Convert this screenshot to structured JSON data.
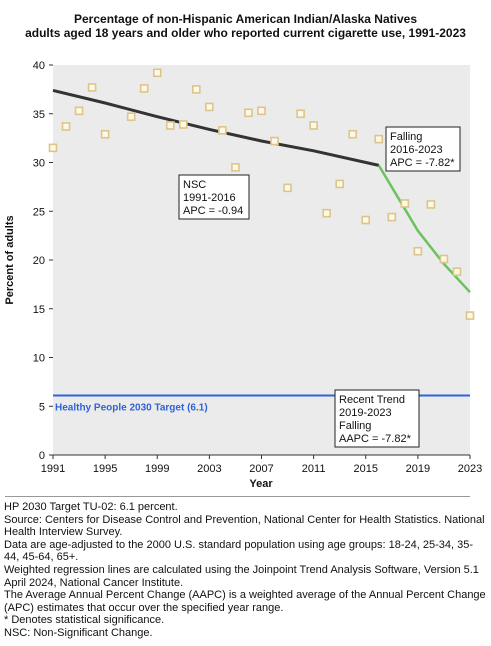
{
  "title": {
    "line1": "Percentage of non-Hispanic American Indian/Alaska Natives",
    "line2": "adults aged 18 years and older who reported current cigarette use, 1991-2023"
  },
  "chart_data": {
    "type": "scatter",
    "xlabel": "Year",
    "ylabel": "Percent of adults",
    "xlim": [
      1991,
      2023
    ],
    "ylim": [
      0,
      40
    ],
    "x_ticks": [
      "1991",
      "1995",
      "1999",
      "2003",
      "2007",
      "2011",
      "2015",
      "2019",
      "2023"
    ],
    "y_ticks": [
      "0",
      "5",
      "10",
      "15",
      "20",
      "25",
      "30",
      "35",
      "40"
    ],
    "grid": false,
    "series": [
      {
        "type": "scatter",
        "marker": "open-square",
        "color": "#dcc58a",
        "x": [
          1991,
          1992,
          1993,
          1994,
          1995,
          1997,
          1998,
          1999,
          2000,
          2001,
          2002,
          2003,
          2004,
          2005,
          2006,
          2007,
          2008,
          2009,
          2010,
          2011,
          2012,
          2013,
          2014,
          2015,
          2016,
          2017,
          2018,
          2019,
          2020,
          2021,
          2022,
          2023
        ],
        "y": [
          31.5,
          33.7,
          35.3,
          37.7,
          32.9,
          34.7,
          37.6,
          39.2,
          33.8,
          33.9,
          37.5,
          35.7,
          33.3,
          29.5,
          35.1,
          35.3,
          32.2,
          27.4,
          35.0,
          33.8,
          24.8,
          27.8,
          32.9,
          24.1,
          32.4,
          24.4,
          25.8,
          20.9,
          25.7,
          20.1,
          18.8,
          14.3
        ]
      },
      {
        "type": "line",
        "color": "#333333",
        "x": [
          1991,
          1995,
          1999,
          2003,
          2007,
          2011,
          2016
        ],
        "y": [
          37.4,
          36.1,
          34.7,
          33.4,
          32.2,
          31.2,
          29.7
        ]
      },
      {
        "type": "line",
        "color": "#6cc25e",
        "x": [
          2016,
          2019,
          2021,
          2023
        ],
        "y": [
          29.7,
          23.0,
          19.6,
          16.7
        ]
      },
      {
        "type": "line",
        "color": "#2f63d8",
        "x": [
          1991,
          2023
        ],
        "y": [
          6.1,
          6.1
        ]
      }
    ],
    "annotations": {
      "target_label": "Healthy People 2030 Target (6.1)",
      "nsc_box": [
        "NSC",
        "1991-2016",
        "APC = -0.94"
      ],
      "falling_box": [
        "Falling",
        "2016-2023",
        "APC = -7.82*"
      ],
      "recent_box": [
        "Recent Trend",
        "2019-2023",
        "Falling",
        "AAPC = -7.82*"
      ]
    }
  },
  "notes": [
    "HP 2030 Target TU-02: 6.1 percent.",
    "Source: Centers for Disease Control and Prevention, National Center for Health Statistics. National Health Interview Survey.",
    "Data are age-adjusted to the 2000 U.S. standard population using age groups: 18-24, 25-34, 35-44, 45-64, 65+.",
    "Weighted regression lines are calculated using the Joinpoint Trend Analysis Software, Version 5.1 April 2024, National Cancer Institute.",
    "The Average Annual Percent Change (AAPC) is a weighted average of the Annual Percent Change (APC) estimates that occur over the specified year range.",
    "* Denotes statistical significance.",
    "NSC: Non-Significant Change."
  ]
}
